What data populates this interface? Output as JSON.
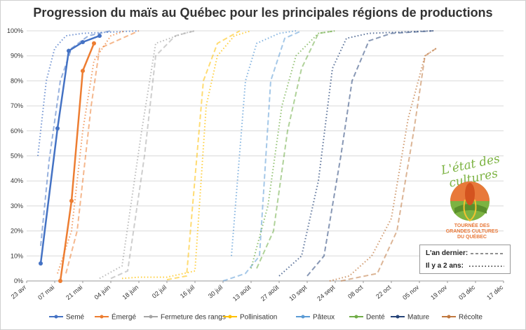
{
  "title": "Progression du maïs au Québec pour les principales régions de productions",
  "chart_data": {
    "type": "line",
    "y_ticks": [
      "0%",
      "10%",
      "20%",
      "30%",
      "40%",
      "50%",
      "60%",
      "70%",
      "80%",
      "90%",
      "100%"
    ],
    "x_ticks": [
      "23 avr",
      "07 mai",
      "21 mai",
      "04 juin",
      "18 juin",
      "02 juil",
      "16 juil",
      "30 juil",
      "13 août",
      "27 août",
      "10 sept",
      "24 sept",
      "08 oct",
      "22 oct",
      "05 nov",
      "19 nov",
      "03 déc",
      "17 déc"
    ],
    "ylim": [
      0,
      100
    ],
    "grid": true,
    "legend_position": "bottom",
    "stages": [
      {
        "name": "Semé",
        "color": "#4472c4",
        "current": [
          [
            0.5,
            7
          ],
          [
            1.1,
            61
          ],
          [
            1.5,
            92
          ],
          [
            2.0,
            95.5
          ],
          [
            2.6,
            98
          ]
        ],
        "last_year": [
          [
            0.5,
            14
          ],
          [
            0.8,
            48
          ],
          [
            1.2,
            80
          ],
          [
            1.6,
            93
          ],
          [
            2.2,
            98
          ],
          [
            3.0,
            100
          ]
        ],
        "two_years": [
          [
            0.4,
            50
          ],
          [
            0.7,
            80
          ],
          [
            1.0,
            93
          ],
          [
            1.4,
            98
          ],
          [
            2.0,
            99
          ],
          [
            4.0,
            100
          ]
        ]
      },
      {
        "name": "Émergé",
        "color": "#ed7d31",
        "current": [
          [
            1.2,
            0
          ],
          [
            1.6,
            32
          ],
          [
            2.0,
            84
          ],
          [
            2.4,
            95
          ]
        ],
        "last_year": [
          [
            1.4,
            3
          ],
          [
            1.8,
            20
          ],
          [
            2.3,
            70
          ],
          [
            2.6,
            93
          ],
          [
            3.0,
            95
          ],
          [
            3.4,
            97
          ],
          [
            4.0,
            100
          ]
        ],
        "two_years": [
          [
            1.1,
            3
          ],
          [
            1.6,
            20
          ],
          [
            2.0,
            60
          ],
          [
            2.4,
            88
          ],
          [
            3.0,
            98
          ],
          [
            3.5,
            100
          ]
        ]
      },
      {
        "name": "Fermeture des rangs",
        "color": "#a5a5a5",
        "current": [],
        "last_year": [
          [
            3.0,
            1
          ],
          [
            3.6,
            4
          ],
          [
            4.2,
            50
          ],
          [
            4.6,
            90
          ],
          [
            5.3,
            98
          ],
          [
            6.0,
            100
          ]
        ],
        "two_years": [
          [
            2.6,
            1
          ],
          [
            3.4,
            6
          ],
          [
            4.1,
            60
          ],
          [
            4.6,
            95
          ],
          [
            5.6,
            99
          ],
          [
            6.0,
            100
          ]
        ]
      },
      {
        "name": "Pollinisation",
        "color": "#ffc000",
        "current": [],
        "last_year": [
          [
            5.0,
            0.5
          ],
          [
            5.7,
            2
          ],
          [
            6.3,
            80
          ],
          [
            6.8,
            95
          ],
          [
            7.6,
            100
          ]
        ],
        "two_years": [
          [
            3.4,
            1
          ],
          [
            4.0,
            1.5
          ],
          [
            5.0,
            1.5
          ],
          [
            6.0,
            4
          ],
          [
            6.4,
            70
          ],
          [
            6.8,
            90
          ],
          [
            7.4,
            98
          ],
          [
            8.0,
            100
          ]
        ]
      },
      {
        "name": "Pâteux",
        "color": "#5b9bd5",
        "current": [],
        "last_year": [
          [
            7.0,
            0
          ],
          [
            7.8,
            3
          ],
          [
            8.3,
            10
          ],
          [
            8.7,
            80
          ],
          [
            9.2,
            97
          ],
          [
            9.8,
            100
          ]
        ],
        "two_years": [
          [
            7.3,
            10
          ],
          [
            7.8,
            80
          ],
          [
            8.2,
            95
          ],
          [
            9.0,
            99
          ],
          [
            9.6,
            100
          ]
        ]
      },
      {
        "name": "Denté",
        "color": "#70ad47",
        "current": [],
        "last_year": [
          [
            8.2,
            5
          ],
          [
            8.8,
            20
          ],
          [
            9.3,
            60
          ],
          [
            9.8,
            85
          ],
          [
            10.4,
            99
          ],
          [
            11.0,
            100
          ]
        ],
        "two_years": [
          [
            8.0,
            5
          ],
          [
            8.6,
            30
          ],
          [
            9.1,
            70
          ],
          [
            9.6,
            90
          ],
          [
            10.4,
            99
          ],
          [
            11.0,
            100
          ]
        ]
      },
      {
        "name": "Mature",
        "color": "#264478",
        "current": [],
        "last_year": [
          [
            10.0,
            2
          ],
          [
            10.6,
            10
          ],
          [
            11.2,
            50
          ],
          [
            11.6,
            80
          ],
          [
            12.2,
            96
          ],
          [
            13.0,
            99
          ],
          [
            14.5,
            100
          ]
        ],
        "two_years": [
          [
            9.0,
            2
          ],
          [
            9.8,
            10
          ],
          [
            10.4,
            40
          ],
          [
            10.9,
            85
          ],
          [
            11.4,
            97
          ],
          [
            12.2,
            99
          ],
          [
            14.5,
            100
          ]
        ]
      },
      {
        "name": "Récolte",
        "color": "#c0783f",
        "current": [],
        "last_year": [
          [
            11.2,
            0
          ],
          [
            12.5,
            3
          ],
          [
            13.2,
            20
          ],
          [
            13.8,
            60
          ],
          [
            14.2,
            90
          ],
          [
            14.6,
            93
          ]
        ],
        "two_years": [
          [
            10.8,
            0
          ],
          [
            11.5,
            2
          ],
          [
            12.3,
            10
          ],
          [
            13.0,
            25
          ],
          [
            13.6,
            65
          ],
          [
            14.2,
            90
          ],
          [
            14.6,
            93
          ]
        ]
      }
    ]
  },
  "notes": {
    "last_year": "L'an dernier:",
    "two_years": "Il y a 2 ans:"
  },
  "logo": {
    "title": "L'état des cultures",
    "line1": "TOURNÉE DES",
    "line2": "GRANDES CULTURES",
    "line3": "DU QUÉBEC"
  }
}
